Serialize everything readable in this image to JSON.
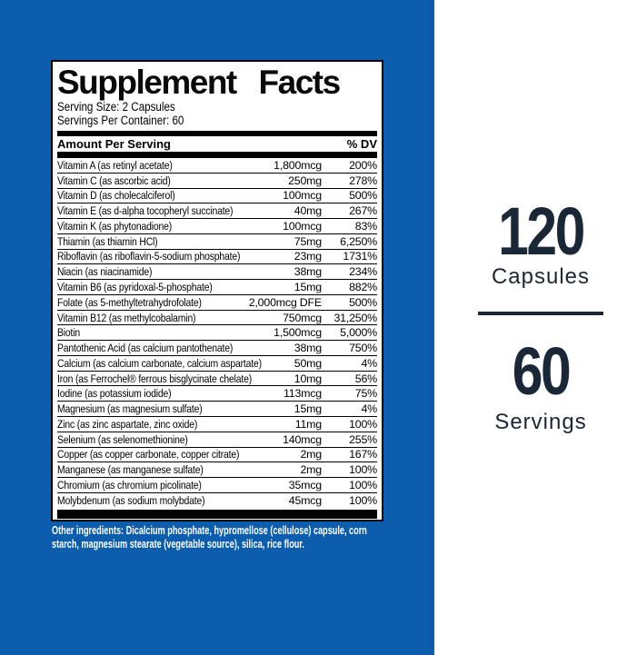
{
  "colors": {
    "background_blue": "#0c5dad",
    "navy_text": "#1a2737"
  },
  "panel": {
    "title": "Supplement Facts",
    "serving_size": "Serving Size: 2 Capsules",
    "servings_per_container": "Servings Per Container: 60",
    "column_header_left": "Amount Per Serving",
    "column_header_right": "% DV",
    "rows": [
      {
        "name": "Vitamin A (as retinyl acetate)",
        "amount": "1,800mcg",
        "dv": "200%"
      },
      {
        "name": "Vitamin C (as ascorbic acid)",
        "amount": "250mg",
        "dv": "278%"
      },
      {
        "name": "Vitamin D (as cholecalciferol)",
        "amount": "100mcg",
        "dv": "500%"
      },
      {
        "name": "Vitamin E (as d-alpha tocopheryl succinate)",
        "amount": "40mg",
        "dv": "267%"
      },
      {
        "name": "Vitamin K (as phytonadione)",
        "amount": "100mcg",
        "dv": "83%"
      },
      {
        "name": "Thiamin (as thiamin HCl)",
        "amount": "75mg",
        "dv": "6,250%"
      },
      {
        "name": "Riboflavin (as riboflavin-5-sodium phosphate)",
        "amount": "23mg",
        "dv": "1731%"
      },
      {
        "name": "Niacin (as niacinamide)",
        "amount": "38mg",
        "dv": "234%"
      },
      {
        "name": "Vitamin B6 (as pyridoxal-5-phosphate)",
        "amount": "15mg",
        "dv": "882%"
      },
      {
        "name": "Folate (as 5-methyltetrahydrofolate)",
        "amount": "2,000mcg DFE",
        "dv": "500%"
      },
      {
        "name": "Vitamin B12 (as methylcobalamin)",
        "amount": "750mcg",
        "dv": "31,250%"
      },
      {
        "name": "Biotin",
        "amount": "1,500mcg",
        "dv": "5,000%"
      },
      {
        "name": "Pantothenic Acid (as calcium pantothenate)",
        "amount": "38mg",
        "dv": "750%"
      },
      {
        "name": "Calcium (as calcium carbonate, calcium aspartate)",
        "amount": "50mg",
        "dv": "4%"
      },
      {
        "name": "Iron (as Ferrochel® ferrous bisglycinate chelate)",
        "amount": "10mg",
        "dv": "56%"
      },
      {
        "name": "Iodine (as potassium iodide)",
        "amount": "113mcg",
        "dv": "75%"
      },
      {
        "name": "Magnesium (as magnesium sulfate)",
        "amount": "15mg",
        "dv": "4%"
      },
      {
        "name": "Zinc (as zinc aspartate, zinc oxide)",
        "amount": "11mg",
        "dv": "100%"
      },
      {
        "name": "Selenium (as selenomethionine)",
        "amount": "140mcg",
        "dv": "255%"
      },
      {
        "name": "Copper (as copper carbonate, copper citrate)",
        "amount": "2mg",
        "dv": "167%"
      },
      {
        "name": "Manganese (as manganese sulfate)",
        "amount": "2mg",
        "dv": "100%"
      },
      {
        "name": "Chromium (as chromium picolinate)",
        "amount": "35mcg",
        "dv": "100%"
      },
      {
        "name": "Molybdenum (as sodium molybdate)",
        "amount": "45mcg",
        "dv": "100%"
      }
    ],
    "other_ingredients": [
      "Other ingredients: Dicalcium phosphate, hypromellose (cellulose) capsule, corn",
      "starch, magnesium stearate (vegetable source), silica, rice flour."
    ]
  },
  "right_panel": {
    "capsule_count": "120",
    "capsule_label": "Capsules",
    "serving_count": "60",
    "serving_label": "Servings"
  }
}
